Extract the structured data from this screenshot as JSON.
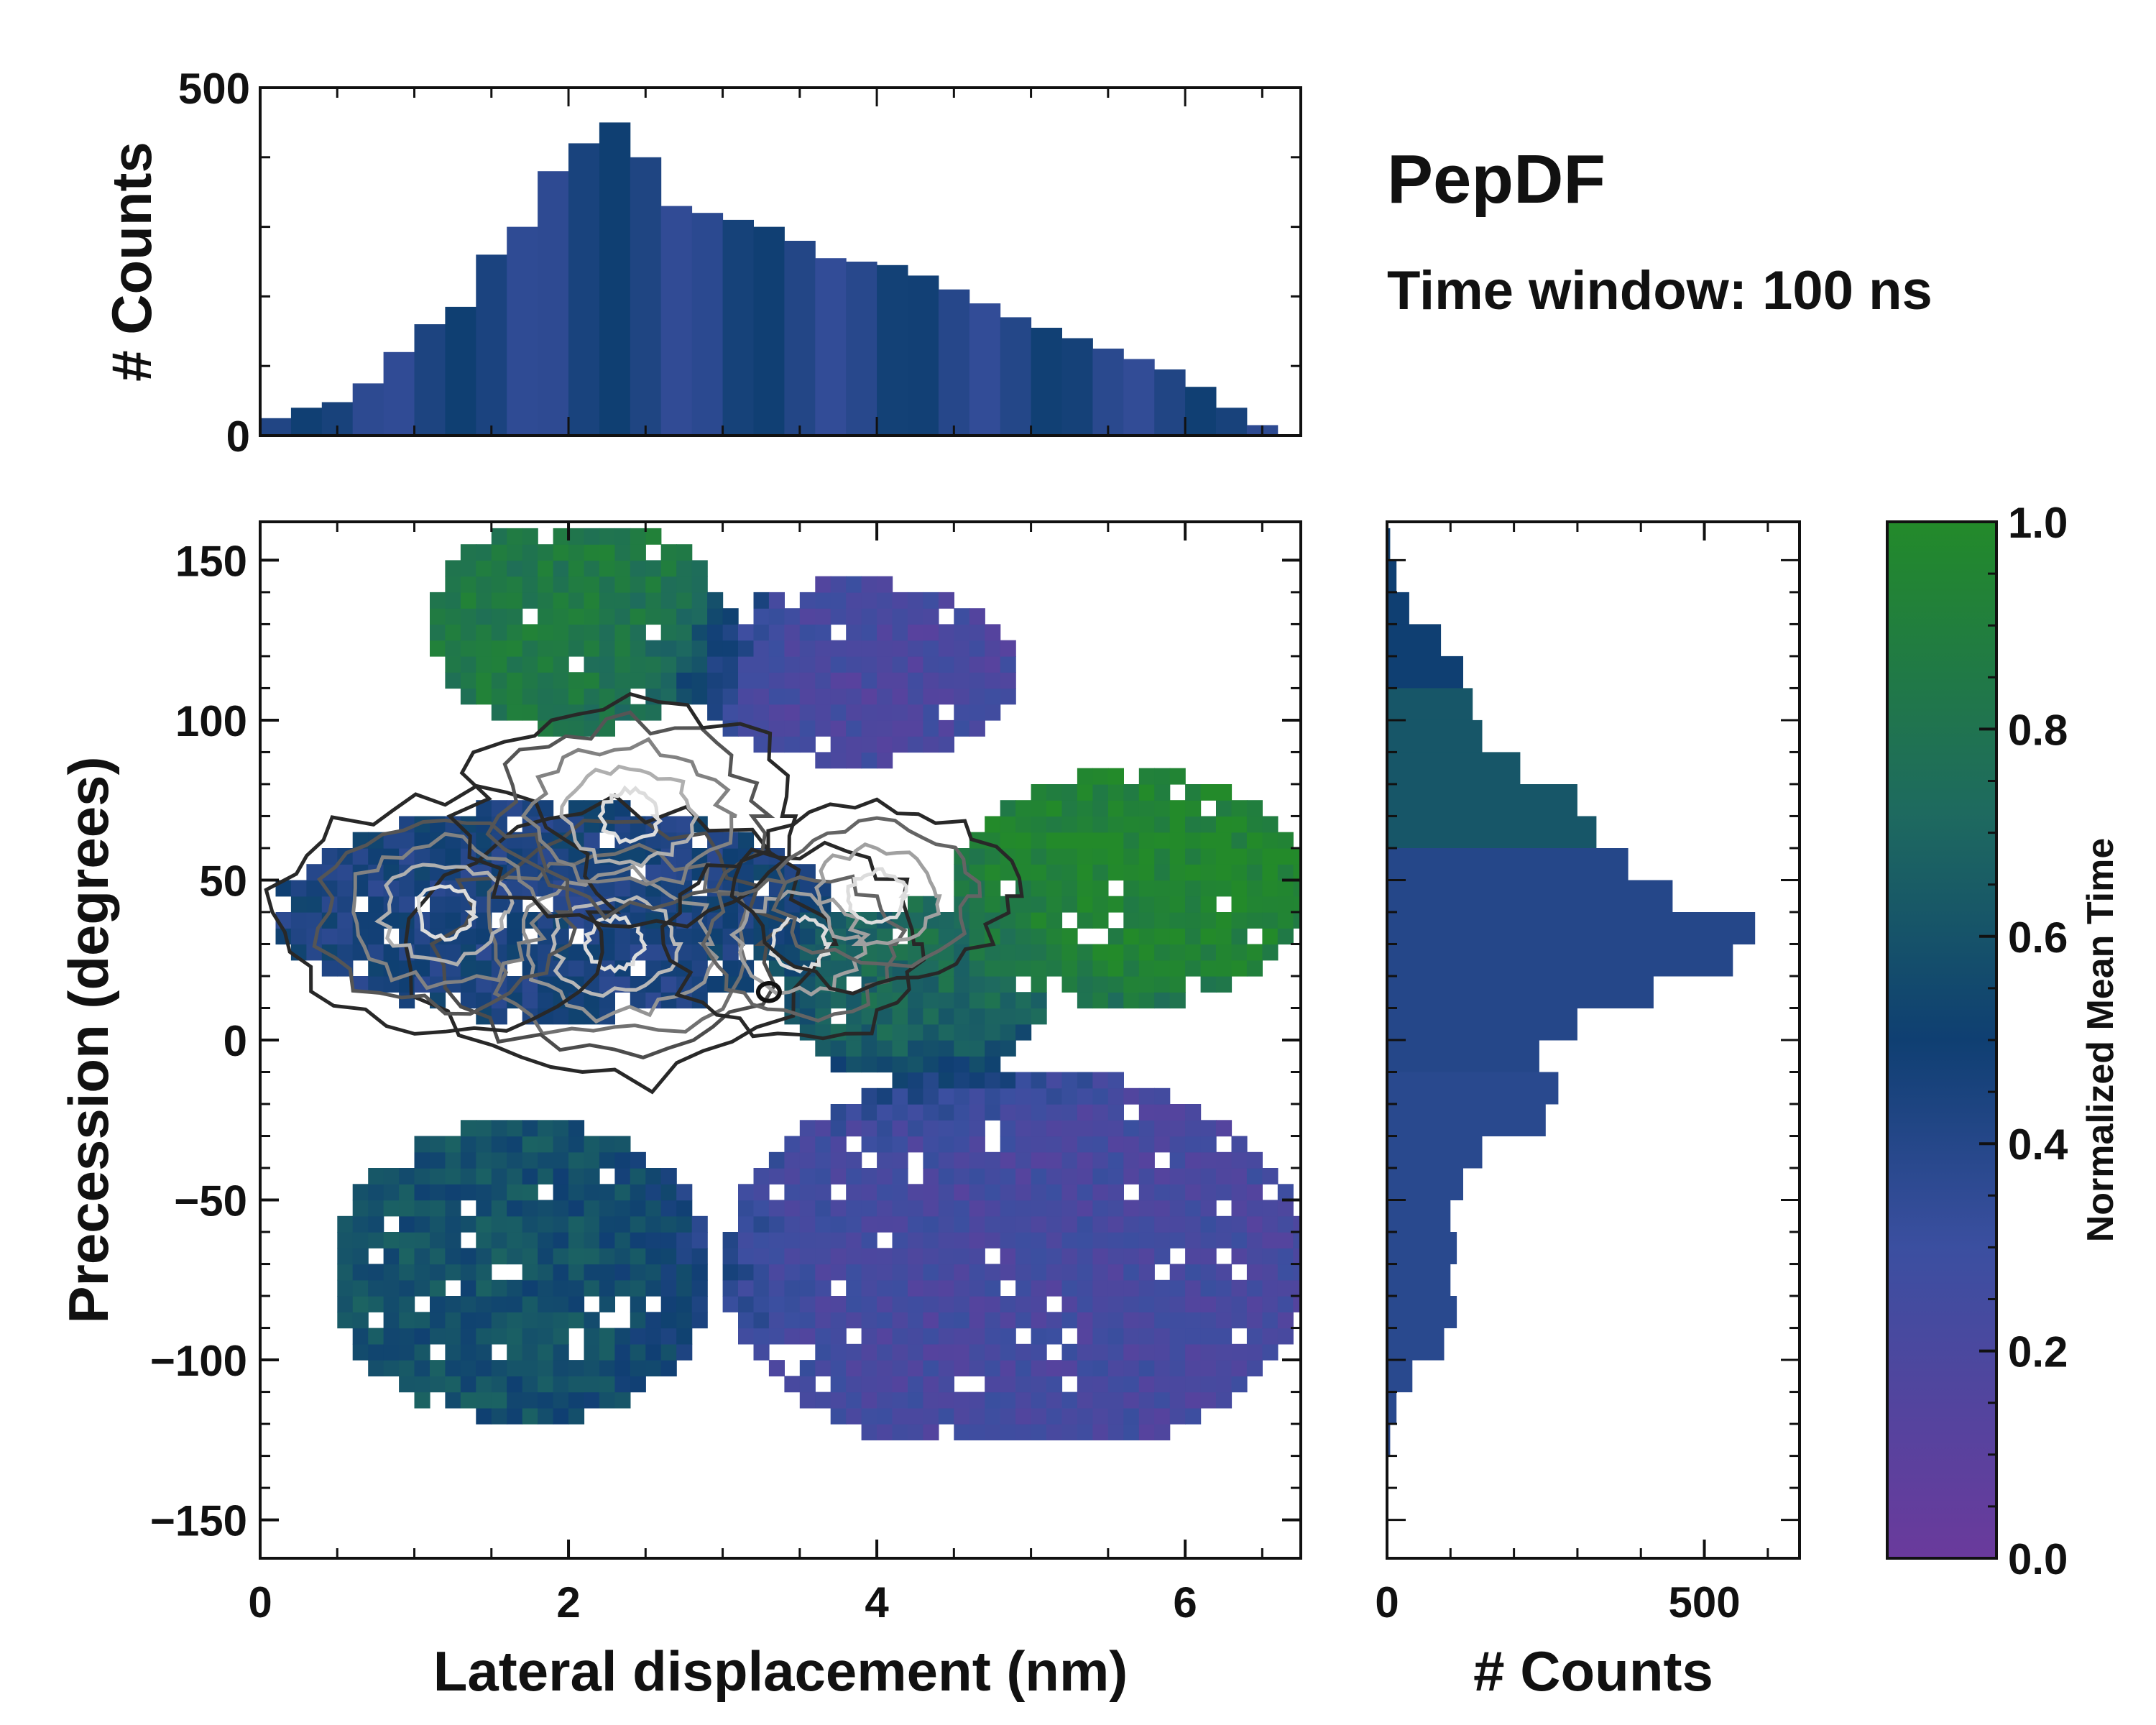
{
  "chart_data": [
    {
      "panel": "main",
      "type": "heatmap",
      "xlabel": "Lateral displacement (nm)",
      "ylabel": "Precession (degrees)",
      "xlim": [
        0,
        6.75
      ],
      "ylim": [
        -162,
        162
      ],
      "xticks": [
        "0",
        "2",
        "4",
        "6"
      ],
      "yticks": [
        "150",
        "100",
        "50",
        "0",
        "−50",
        "−100",
        "−150"
      ],
      "xtick_values": [
        0,
        2,
        4,
        6
      ],
      "ytick_values": [
        150,
        100,
        50,
        0,
        -50,
        -100,
        -150
      ],
      "color_field": "normalized mean time",
      "regions": [
        {
          "name": "upper-left green",
          "x": [
            1.2,
            2.9
          ],
          "y": [
            100,
            160
          ],
          "value": 0.85
        },
        {
          "name": "upper-middle purple",
          "x": [
            2.9,
            4.8
          ],
          "y": [
            90,
            140
          ],
          "value": 0.2
        },
        {
          "name": "core blue",
          "x": [
            0.3,
            3.5
          ],
          "y": [
            10,
            70
          ],
          "value": 0.45
        },
        {
          "name": "center green",
          "x": [
            3.5,
            5.0
          ],
          "y": [
            -10,
            40
          ],
          "value": 0.75
        },
        {
          "name": "right green",
          "x": [
            4.6,
            6.7
          ],
          "y": [
            15,
            80
          ],
          "value": 0.95
        },
        {
          "name": "lower-left teal",
          "x": [
            0.6,
            2.8
          ],
          "y": [
            -115,
            -30
          ],
          "value": 0.6
        },
        {
          "name": "lower-right purple",
          "x": [
            3.2,
            6.6
          ],
          "y": [
            -125,
            -15
          ],
          "value": 0.22
        }
      ],
      "contour_peaks": [
        {
          "x": 2.3,
          "y": 30,
          "level": "highest"
        },
        {
          "x": 1.2,
          "y": 40,
          "level": "high"
        },
        {
          "x": 2.4,
          "y": 70,
          "level": "high"
        },
        {
          "x": 3.5,
          "y": 30,
          "level": "medium"
        },
        {
          "x": 4.0,
          "y": 45,
          "level": "medium"
        }
      ]
    },
    {
      "panel": "top-histogram",
      "type": "bar",
      "ylabel": "# Counts",
      "xlim": [
        0,
        6.75
      ],
      "ylim": [
        0,
        500
      ],
      "yticks": [
        "500",
        "0"
      ],
      "ytick_values": [
        500,
        0
      ],
      "bin_centers_nm": [
        0.1,
        0.3,
        0.5,
        0.7,
        0.9,
        1.1,
        1.3,
        1.5,
        1.7,
        1.9,
        2.1,
        2.3,
        2.5,
        2.7,
        2.9,
        3.1,
        3.3,
        3.5,
        3.7,
        3.9,
        4.1,
        4.3,
        4.5,
        4.7,
        4.9,
        5.1,
        5.3,
        5.5,
        5.7,
        5.9,
        6.1,
        6.3,
        6.5
      ],
      "values": [
        25,
        40,
        48,
        75,
        120,
        160,
        185,
        260,
        300,
        380,
        420,
        450,
        400,
        330,
        320,
        310,
        300,
        280,
        255,
        250,
        245,
        230,
        210,
        190,
        170,
        155,
        140,
        125,
        110,
        95,
        70,
        40,
        15
      ]
    },
    {
      "panel": "right-histogram",
      "type": "bar",
      "orientation": "horizontal",
      "xlabel": "# Counts",
      "xlim": [
        0,
        650
      ],
      "ylim": [
        -162,
        162
      ],
      "xticks": [
        "0",
        "500"
      ],
      "xtick_values": [
        0,
        500
      ],
      "bin_centers_deg": [
        155,
        145,
        135,
        125,
        115,
        105,
        95,
        85,
        75,
        65,
        55,
        45,
        35,
        25,
        15,
        5,
        -5,
        -15,
        -25,
        -35,
        -45,
        -55,
        -65,
        -75,
        -85,
        -95,
        -105,
        -115,
        -125
      ],
      "values": [
        5,
        15,
        35,
        85,
        120,
        135,
        150,
        210,
        300,
        330,
        380,
        450,
        580,
        545,
        420,
        300,
        240,
        270,
        250,
        150,
        120,
        100,
        110,
        100,
        110,
        90,
        40,
        15,
        5
      ]
    },
    {
      "panel": "colorbar",
      "type": "colorbar",
      "label": "Normalized Mean Time",
      "range": [
        0.0,
        1.0
      ],
      "ticks": [
        "0.0",
        "0.2",
        "0.4",
        "0.6",
        "0.8",
        "1.0"
      ],
      "tick_values": [
        0.0,
        0.2,
        0.4,
        0.6,
        0.8,
        1.0
      ],
      "colors": [
        "#6a3a9c",
        "#3b4fa0",
        "#0f3f72",
        "#1e6a5f",
        "#238a2a"
      ]
    }
  ],
  "annotation": {
    "title": "PepDF",
    "subtitle": "Time window: 100 ns"
  }
}
